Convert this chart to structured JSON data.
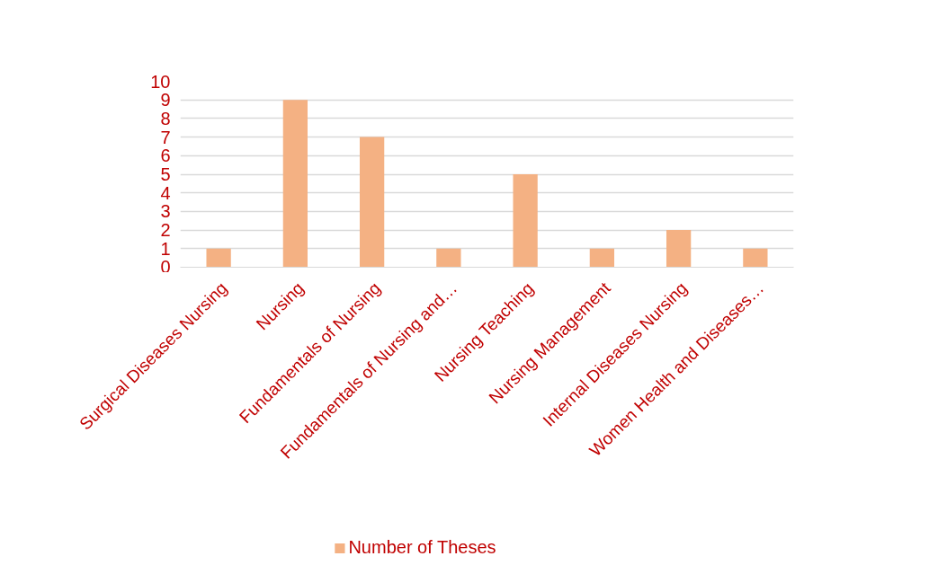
{
  "chart_data": {
    "type": "bar",
    "categories": [
      "Surgical Diseases Nursing",
      "Nursing",
      "Fundamentals of Nursing",
      "Fundamentals of Nursing and…",
      "Nursing Teaching",
      "Nursing Management",
      "Internal Diseases Nursing",
      "Women Health and Diseases…"
    ],
    "series": [
      {
        "name": "Number of Theses",
        "color": "#f4b183",
        "values": [
          1,
          9,
          7,
          1,
          5,
          1,
          2,
          1
        ]
      }
    ],
    "ylim": [
      0,
      10
    ],
    "yticks": [
      0,
      1,
      2,
      3,
      4,
      5,
      6,
      7,
      8,
      9,
      10
    ],
    "grid": "y",
    "legend": "bottom"
  }
}
